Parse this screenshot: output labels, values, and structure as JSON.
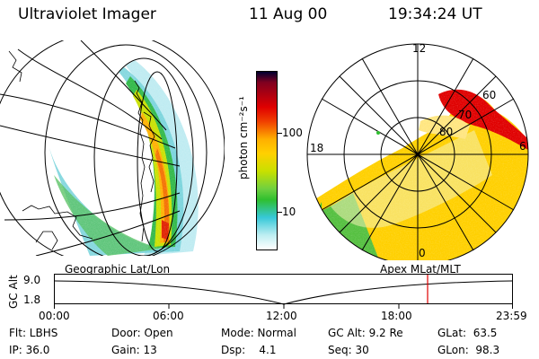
{
  "header": {
    "title": "Ultraviolet Imager",
    "date": "11 Aug 00",
    "time": "19:34:24 UT"
  },
  "left_panel": {
    "caption": "Geographic Lat/Lon"
  },
  "right_panel": {
    "caption": "Apex MLat/MLT",
    "mlt_labels": [
      "12",
      "18",
      "6",
      "0"
    ],
    "lat_labels": [
      "60",
      "70",
      "80"
    ]
  },
  "colorbar": {
    "unit_label": "photon cm⁻²s⁻¹",
    "tick_labels": [
      "100",
      "10"
    ],
    "scale": "log",
    "colors": [
      "#ffffff",
      "#36c8d8",
      "#2fbf2f",
      "#c8e000",
      "#ffb000",
      "#f04000",
      "#c00000",
      "#000030"
    ]
  },
  "timeline": {
    "axis_label": "GC Alt",
    "y_ticks": [
      "9.0",
      "1.8"
    ],
    "x_ticks": [
      "00:00",
      "06:00",
      "12:00",
      "18:00",
      "23:59"
    ],
    "current_marker_time": "19:34",
    "marker_color": "#e00000"
  },
  "info": {
    "flt": "Flt: LBHS",
    "ip": "IP: 36.0",
    "door": "Door: Open",
    "gain": "Gain: 13",
    "mode": "Mode: Normal",
    "dsp": "Dsp:    4.1",
    "gc_alt": "GC Alt: 9.2 Re",
    "seq": "Seq: 30",
    "glat": "GLat:  63.5",
    "glon": "GLon:  98.3"
  }
}
